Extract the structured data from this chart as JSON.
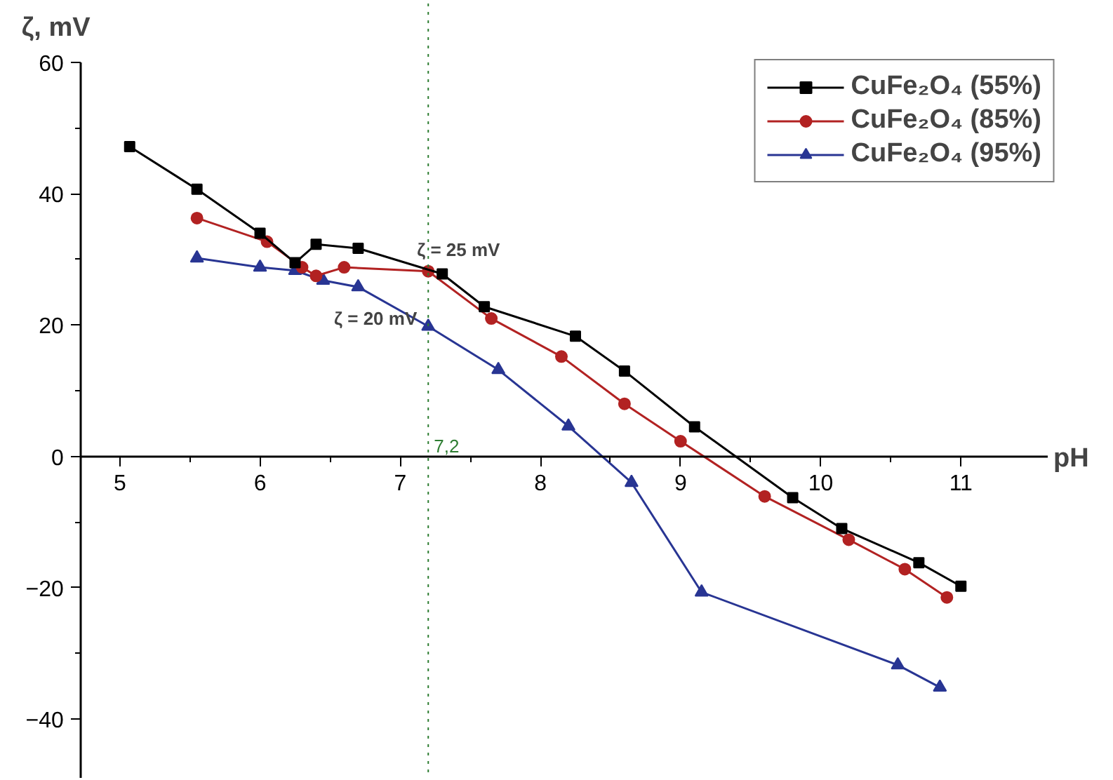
{
  "chart_data": {
    "type": "line",
    "xlabel": "pH",
    "ylabel": "ζ, mV",
    "xlim": [
      4.72,
      11.62
    ],
    "ylim": [
      -49,
      60
    ],
    "xticks": [
      5,
      6,
      7,
      8,
      9,
      10,
      11
    ],
    "yticks": [
      -40,
      -20,
      0,
      20,
      40,
      60
    ],
    "grid": false,
    "legend": "top right",
    "line_style": "solid",
    "series": [
      {
        "name": "CuFe₂O₄ (55%)",
        "color": "#000000",
        "marker": "square",
        "x": [
          5.07,
          5.55,
          6.0,
          6.25,
          6.4,
          6.7,
          7.3,
          7.6,
          8.25,
          8.6,
          9.1,
          9.8,
          10.15,
          10.7,
          11.0
        ],
        "values": [
          47.2,
          40.7,
          34,
          29.5,
          32.3,
          31.7,
          27.8,
          22.8,
          18.3,
          13,
          4.5,
          -6.3,
          -11,
          -16.2,
          -19.8
        ]
      },
      {
        "name": "CuFe₂O₄ (85%)",
        "color": "#b22222",
        "marker": "circle",
        "x": [
          5.55,
          6.05,
          6.3,
          6.4,
          6.6,
          7.2,
          7.65,
          8.15,
          8.6,
          9.0,
          9.6,
          10.2,
          10.6,
          10.9
        ],
        "values": [
          36.3,
          32.7,
          28.8,
          27.5,
          28.8,
          28.2,
          21,
          15.2,
          8,
          2.3,
          -6.1,
          -12.7,
          -17.2,
          -21.5
        ]
      },
      {
        "name": "CuFe₂O₄ (95%)",
        "color": "#283593",
        "marker": "triangle",
        "x": [
          5.55,
          6.0,
          6.25,
          6.45,
          6.7,
          7.2,
          7.7,
          8.2,
          8.65,
          9.15,
          10.55,
          10.85
        ],
        "values": [
          30.2,
          28.8,
          28.3,
          26.8,
          25.8,
          19.8,
          13.2,
          4.6,
          -4,
          -20.7,
          -31.8,
          -35.2
        ]
      }
    ],
    "ref_lines": [
      {
        "axis": "x",
        "value": 7.2,
        "label": "7,2",
        "color": "#2e7d32",
        "line_style": "dotted"
      }
    ],
    "annotations": [
      {
        "text": "ζ = 25 mV",
        "x": 7.2,
        "y": 28.2
      },
      {
        "text": "ζ = 20 mV",
        "x": 7.2,
        "y": 19.8
      }
    ]
  }
}
